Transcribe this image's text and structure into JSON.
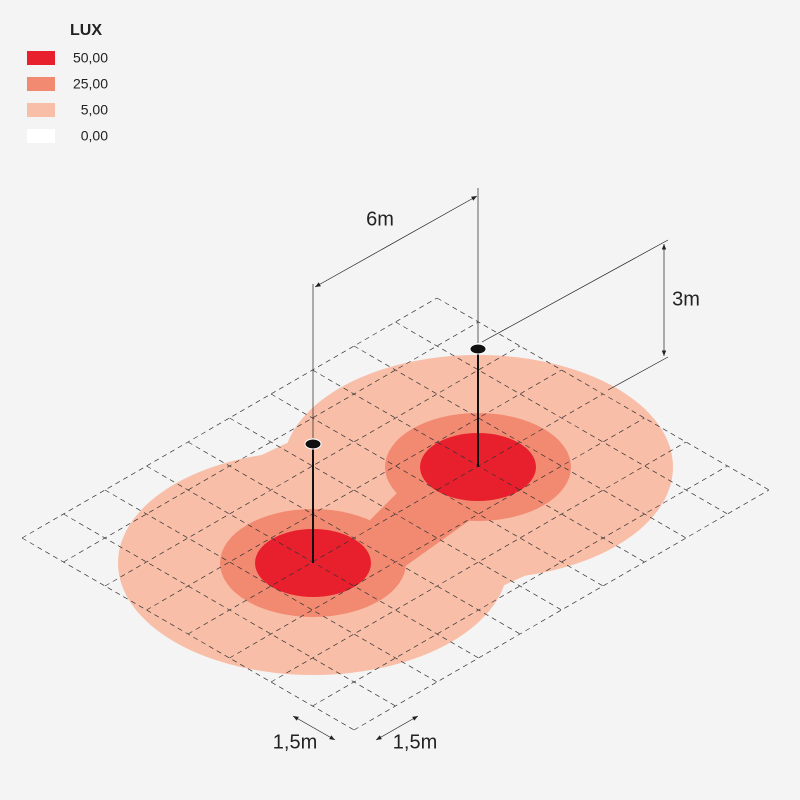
{
  "legend": {
    "title": "LUX",
    "items": [
      {
        "label": "50,00",
        "color": "#e8202e"
      },
      {
        "label": "25,00",
        "color": "#f28a72"
      },
      {
        "label": "5,00",
        "color": "#f8bea8"
      },
      {
        "label": "0,00",
        "color": "#ffffff"
      }
    ]
  },
  "dimensions": {
    "spacing": "6m",
    "height": "3m",
    "cell_a": "1,5m",
    "cell_b": "1,5m"
  }
}
